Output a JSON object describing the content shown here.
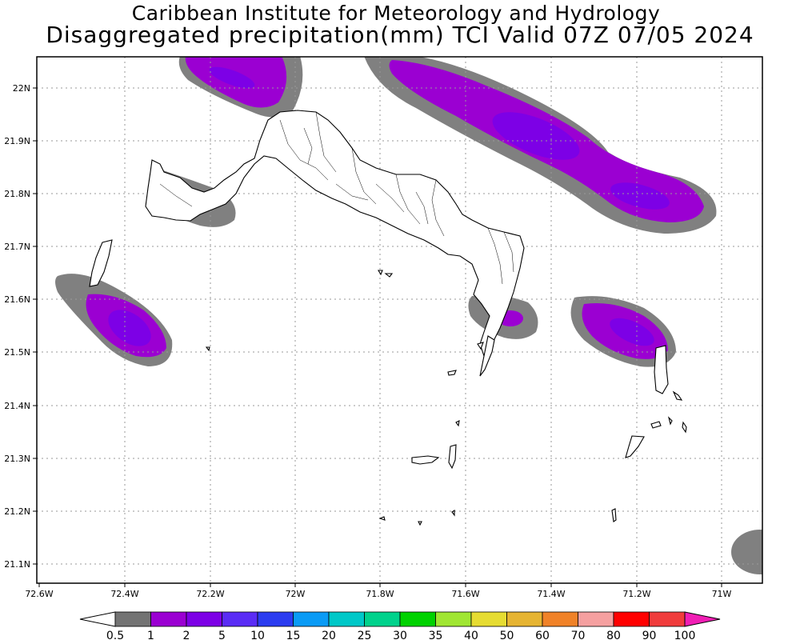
{
  "title": {
    "line1": "Caribbean Institute for Meteorology and Hydrology",
    "line2": "Disaggregated precipitation(mm) TCI Valid 07Z 07/05 2024"
  },
  "map": {
    "lon_labels": [
      "72.6W",
      "72.4W",
      "72.2W",
      "72W",
      "71.8W",
      "71.6W",
      "71.4W",
      "71.2W",
      "71W"
    ],
    "lat_labels": [
      "22N",
      "21.9N",
      "21.8N",
      "21.7N",
      "21.6N",
      "21.5N",
      "21.4N",
      "21.3N",
      "21.2N",
      "21.1N"
    ],
    "grid": "dotted"
  },
  "colorbar": {
    "labels": [
      "0.5",
      "1",
      "2",
      "5",
      "10",
      "15",
      "20",
      "25",
      "30",
      "35",
      "40",
      "50",
      "60",
      "70",
      "80",
      "90",
      "100"
    ],
    "colors": [
      "#737373",
      "#9b00d2",
      "#7d00e6",
      "#5a2cf5",
      "#2b3cf0",
      "#0a9bf5",
      "#00c8c8",
      "#00d28c",
      "#00d200",
      "#a0e632",
      "#e6dc32",
      "#e6b432",
      "#f08228",
      "#f5a0a0",
      "#ff0000",
      "#f03c3c",
      "#f01eb4"
    ]
  },
  "legend_colors": {
    "gray": "#808080",
    "light_purple": "#9b00d2",
    "dark_purple": "#7d00e6"
  }
}
